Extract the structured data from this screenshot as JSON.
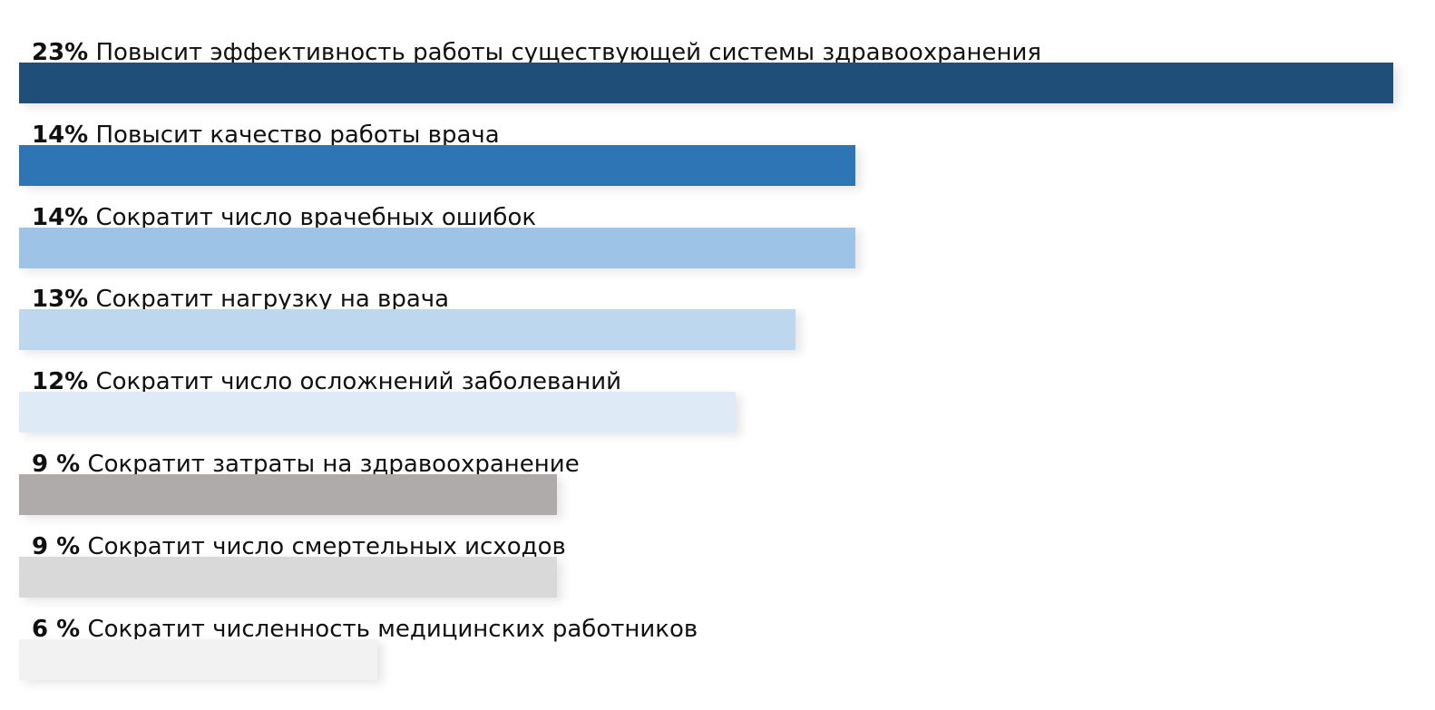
{
  "chart_data": {
    "type": "bar",
    "orientation": "horizontal",
    "title": "",
    "xlabel": "",
    "ylabel": "",
    "xlim": [
      0,
      23
    ],
    "grid": false,
    "legend": "none",
    "items": [
      {
        "pct_label": "23%",
        "text": "Повысит эффективность работы существующей системы здравоохранения",
        "value": 23,
        "color": "#1f4e79"
      },
      {
        "pct_label": "14%",
        "text": "Повысит качество работы врача",
        "value": 14,
        "color": "#2e75b6"
      },
      {
        "pct_label": "14%",
        "text": "Сократит число врачебных ошибок",
        "value": 14,
        "color": "#9dc3e6"
      },
      {
        "pct_label": "13%",
        "text": "Сократит нагрузку на врача",
        "value": 13,
        "color": "#bdd7ee"
      },
      {
        "pct_label": "12%",
        "text": "Сократит число осложнений заболеваний",
        "value": 12,
        "color": "#deebf7"
      },
      {
        "pct_label": "9 %",
        "text": "Сократит затраты на здравоохранение",
        "value": 9,
        "color": "#afabab"
      },
      {
        "pct_label": "9 %",
        "text": "Сократит число смертельных исходов",
        "value": 9,
        "color": "#d9d9d9"
      },
      {
        "pct_label": "6 %",
        "text": "Сократит численность медицинских работников",
        "value": 6,
        "color": "#f2f2f2"
      }
    ]
  }
}
